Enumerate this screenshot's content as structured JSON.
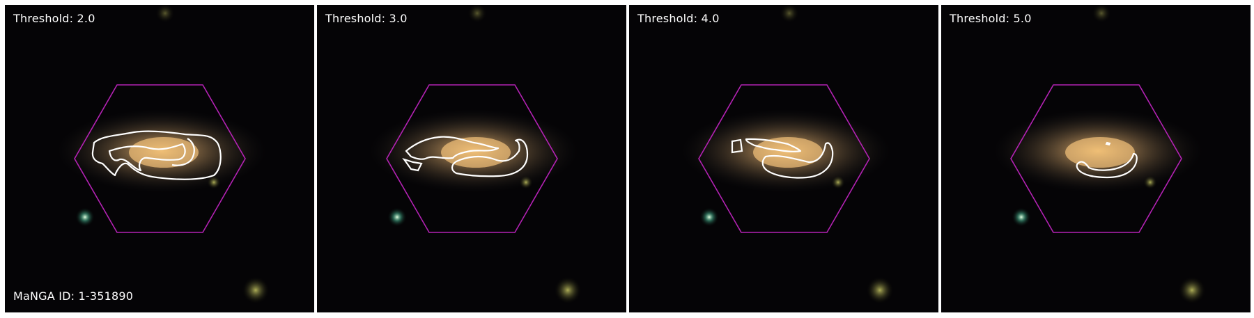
{
  "panels": [
    {
      "threshold_label": "Threshold: 2.0"
    },
    {
      "threshold_label": "Threshold: 3.0"
    },
    {
      "threshold_label": "Threshold: 4.0"
    },
    {
      "threshold_label": "Threshold: 5.0"
    }
  ],
  "manga_id_label": "MaNGA ID: 1-351890",
  "colors": {
    "background": "#050406",
    "hexagon": "#b422b4",
    "contour": "#ffffff",
    "galaxy_core": "#e8b060"
  }
}
